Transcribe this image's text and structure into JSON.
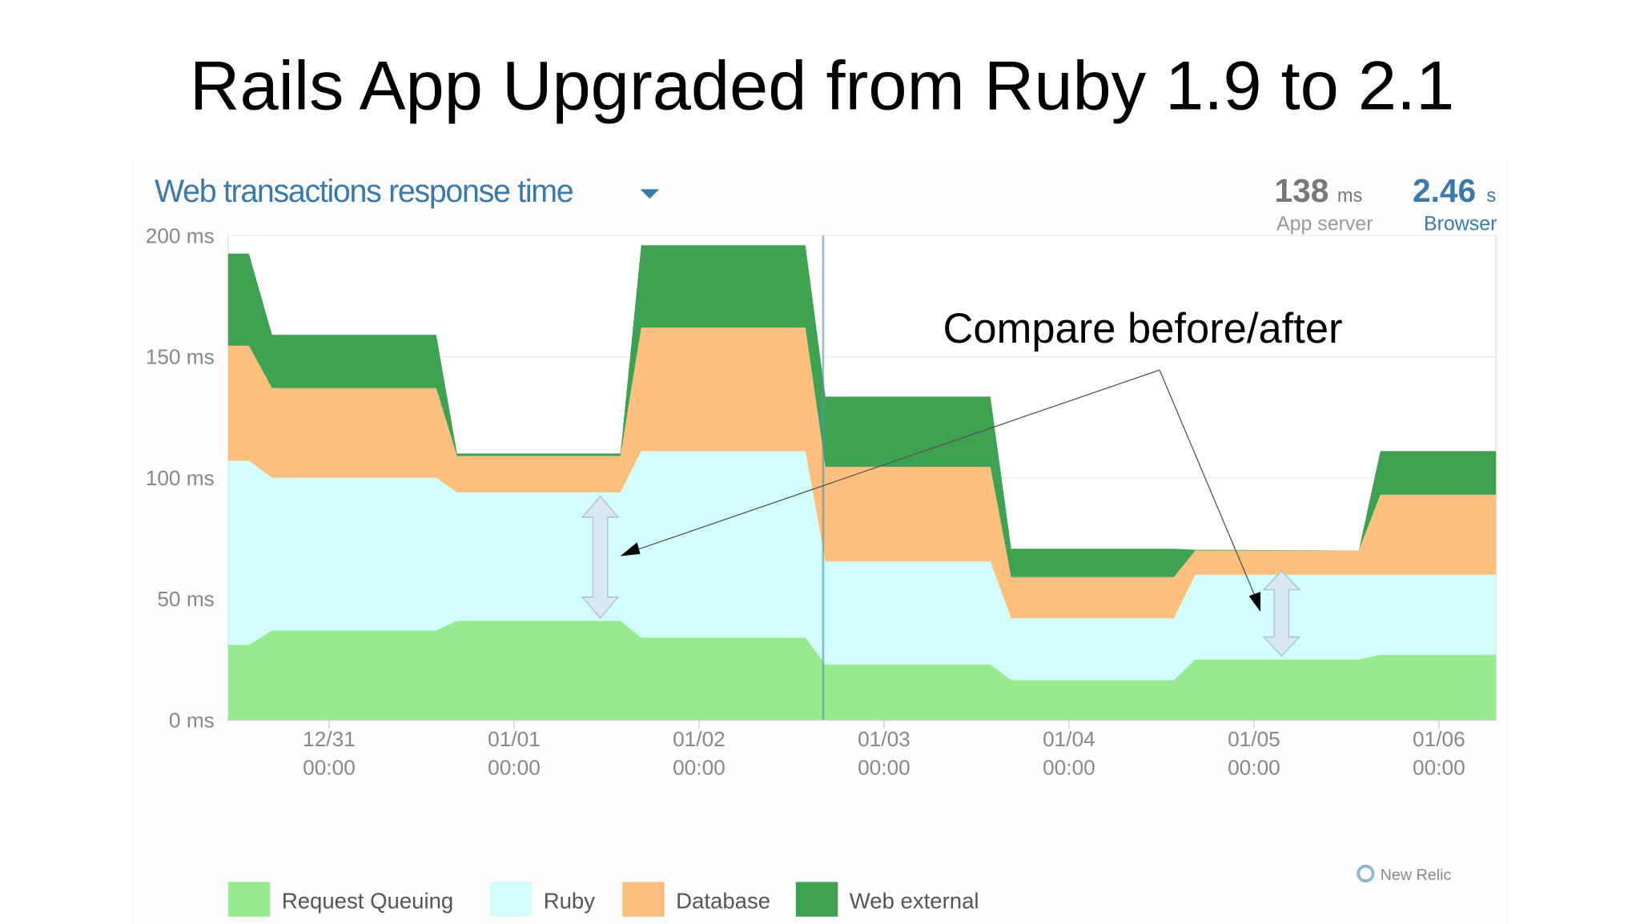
{
  "title": "Rails App Upgraded from Ruby 1.9 to 2.1",
  "widget": {
    "title": "Web transactions response time",
    "stats": [
      {
        "value": "138",
        "unit": "ms",
        "label": "App server"
      },
      {
        "value": "2.46",
        "unit": "s",
        "label": "Browser"
      }
    ],
    "brand": "New Relic"
  },
  "chart_data": {
    "type": "stacked_area",
    "annotation": "Compare before/after",
    "x": [
      -13.1,
      -10.4,
      -7.4,
      13.9,
      16.6,
      37.8,
      40.5,
      61.8,
      64.4,
      85.8,
      88.5,
      109.6,
      112.4,
      133.6,
      136.4,
      151.4
    ],
    "xlim": [
      -13.1,
      151.4
    ],
    "xticks": [
      {
        "value": 0,
        "label": "12/31 00:00"
      },
      {
        "value": 24,
        "label": "01/01 00:00"
      },
      {
        "value": 48,
        "label": "01/02 00:00"
      },
      {
        "value": 72,
        "label": "01/03 00:00"
      },
      {
        "value": 96,
        "label": "01/04 00:00"
      },
      {
        "value": 120,
        "label": "01/05 00:00"
      },
      {
        "value": 144,
        "label": "01/06 00:00"
      }
    ],
    "ylim": [
      0,
      200
    ],
    "yticks": [
      {
        "value": 0,
        "label": "0 ms"
      },
      {
        "value": 50,
        "label": "50 ms"
      },
      {
        "value": 100,
        "label": "100 ms"
      },
      {
        "value": 150,
        "label": "150 ms"
      },
      {
        "value": 200,
        "label": "200 ms"
      }
    ],
    "grid": true,
    "series": [
      {
        "name": "Request Queuing",
        "color": "#98ea8e",
        "values": [
          31,
          31,
          37,
          37,
          41,
          41,
          34,
          34,
          23,
          23,
          16.5,
          16.5,
          25,
          25,
          27,
          27
        ]
      },
      {
        "name": "Ruby",
        "color": "#d2fdfd",
        "values": [
          76,
          76,
          63,
          63,
          53,
          53,
          77,
          77,
          42.5,
          42.5,
          25.5,
          25.5,
          35,
          35,
          33,
          33
        ]
      },
      {
        "name": "Database",
        "color": "#fcbf7d",
        "values": [
          47.5,
          47.5,
          37,
          37,
          15,
          15,
          51,
          51,
          39,
          39,
          17,
          17,
          10,
          10,
          33,
          33
        ]
      },
      {
        "name": "Web external",
        "color": "#3ea252",
        "values": [
          38,
          38,
          22,
          22,
          1,
          1,
          34,
          34,
          29,
          29,
          11.7,
          11.7,
          0.3,
          0,
          18,
          18
        ]
      }
    ]
  }
}
